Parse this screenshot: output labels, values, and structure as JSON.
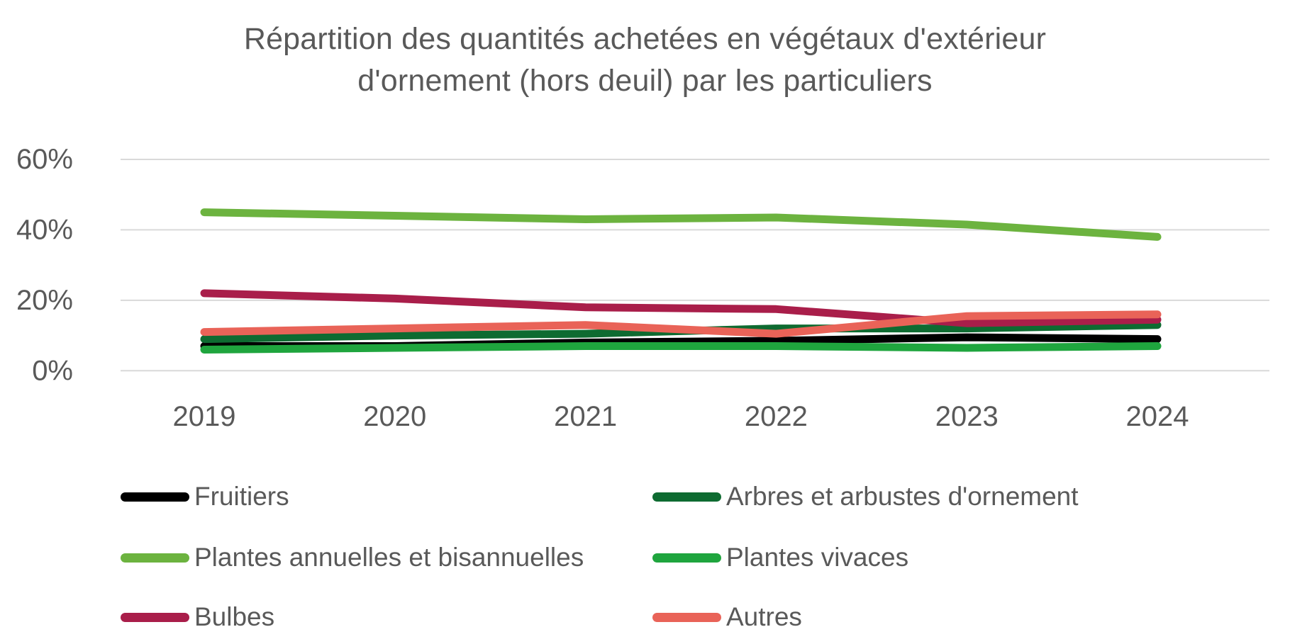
{
  "title": {
    "line1": "Répartition des quantités achetées en végétaux d'extérieur",
    "line2": "d'ornement (hors deuil) par les particuliers"
  },
  "chart_data": {
    "type": "line",
    "x": [
      2019,
      2020,
      2021,
      2022,
      2023,
      2024
    ],
    "x_labels": [
      "2019",
      "2020",
      "2021",
      "2022",
      "2023",
      "2024"
    ],
    "y_axis": {
      "unit": "%",
      "min": 0,
      "max": 60,
      "tick_values": [
        60,
        40,
        20,
        0
      ],
      "tick_labels": [
        "60%",
        "40%",
        "20%",
        "0%"
      ]
    },
    "grid": true,
    "legend_position": "bottom",
    "series": [
      {
        "name": "Fruitiers",
        "color": "#000000",
        "values": [
          7,
          7,
          8,
          8.5,
          9.5,
          9
        ]
      },
      {
        "name": "Arbres et arbustes d'ornement",
        "color": "#0E6B31",
        "values": [
          9,
          10,
          10.5,
          12,
          12,
          13
        ]
      },
      {
        "name": "Plantes annuelles et bisannuelles",
        "color": "#6CB33F",
        "values": [
          45,
          44,
          43,
          43.5,
          41.5,
          38
        ]
      },
      {
        "name": "Plantes vivaces",
        "color": "#1FA53E",
        "values": [
          6,
          6.5,
          7,
          7,
          6.5,
          7
        ]
      },
      {
        "name": "Bulbes",
        "color": "#A91E4A",
        "values": [
          22,
          20.5,
          18,
          17.5,
          13.5,
          14.5
        ]
      },
      {
        "name": "Autres",
        "color": "#E96358",
        "values": [
          11,
          12,
          13,
          10.5,
          15.5,
          16
        ]
      }
    ],
    "colors": {
      "axis_text": "#595959",
      "gridline": "#D9D9D9",
      "title_text": "#595959"
    }
  }
}
